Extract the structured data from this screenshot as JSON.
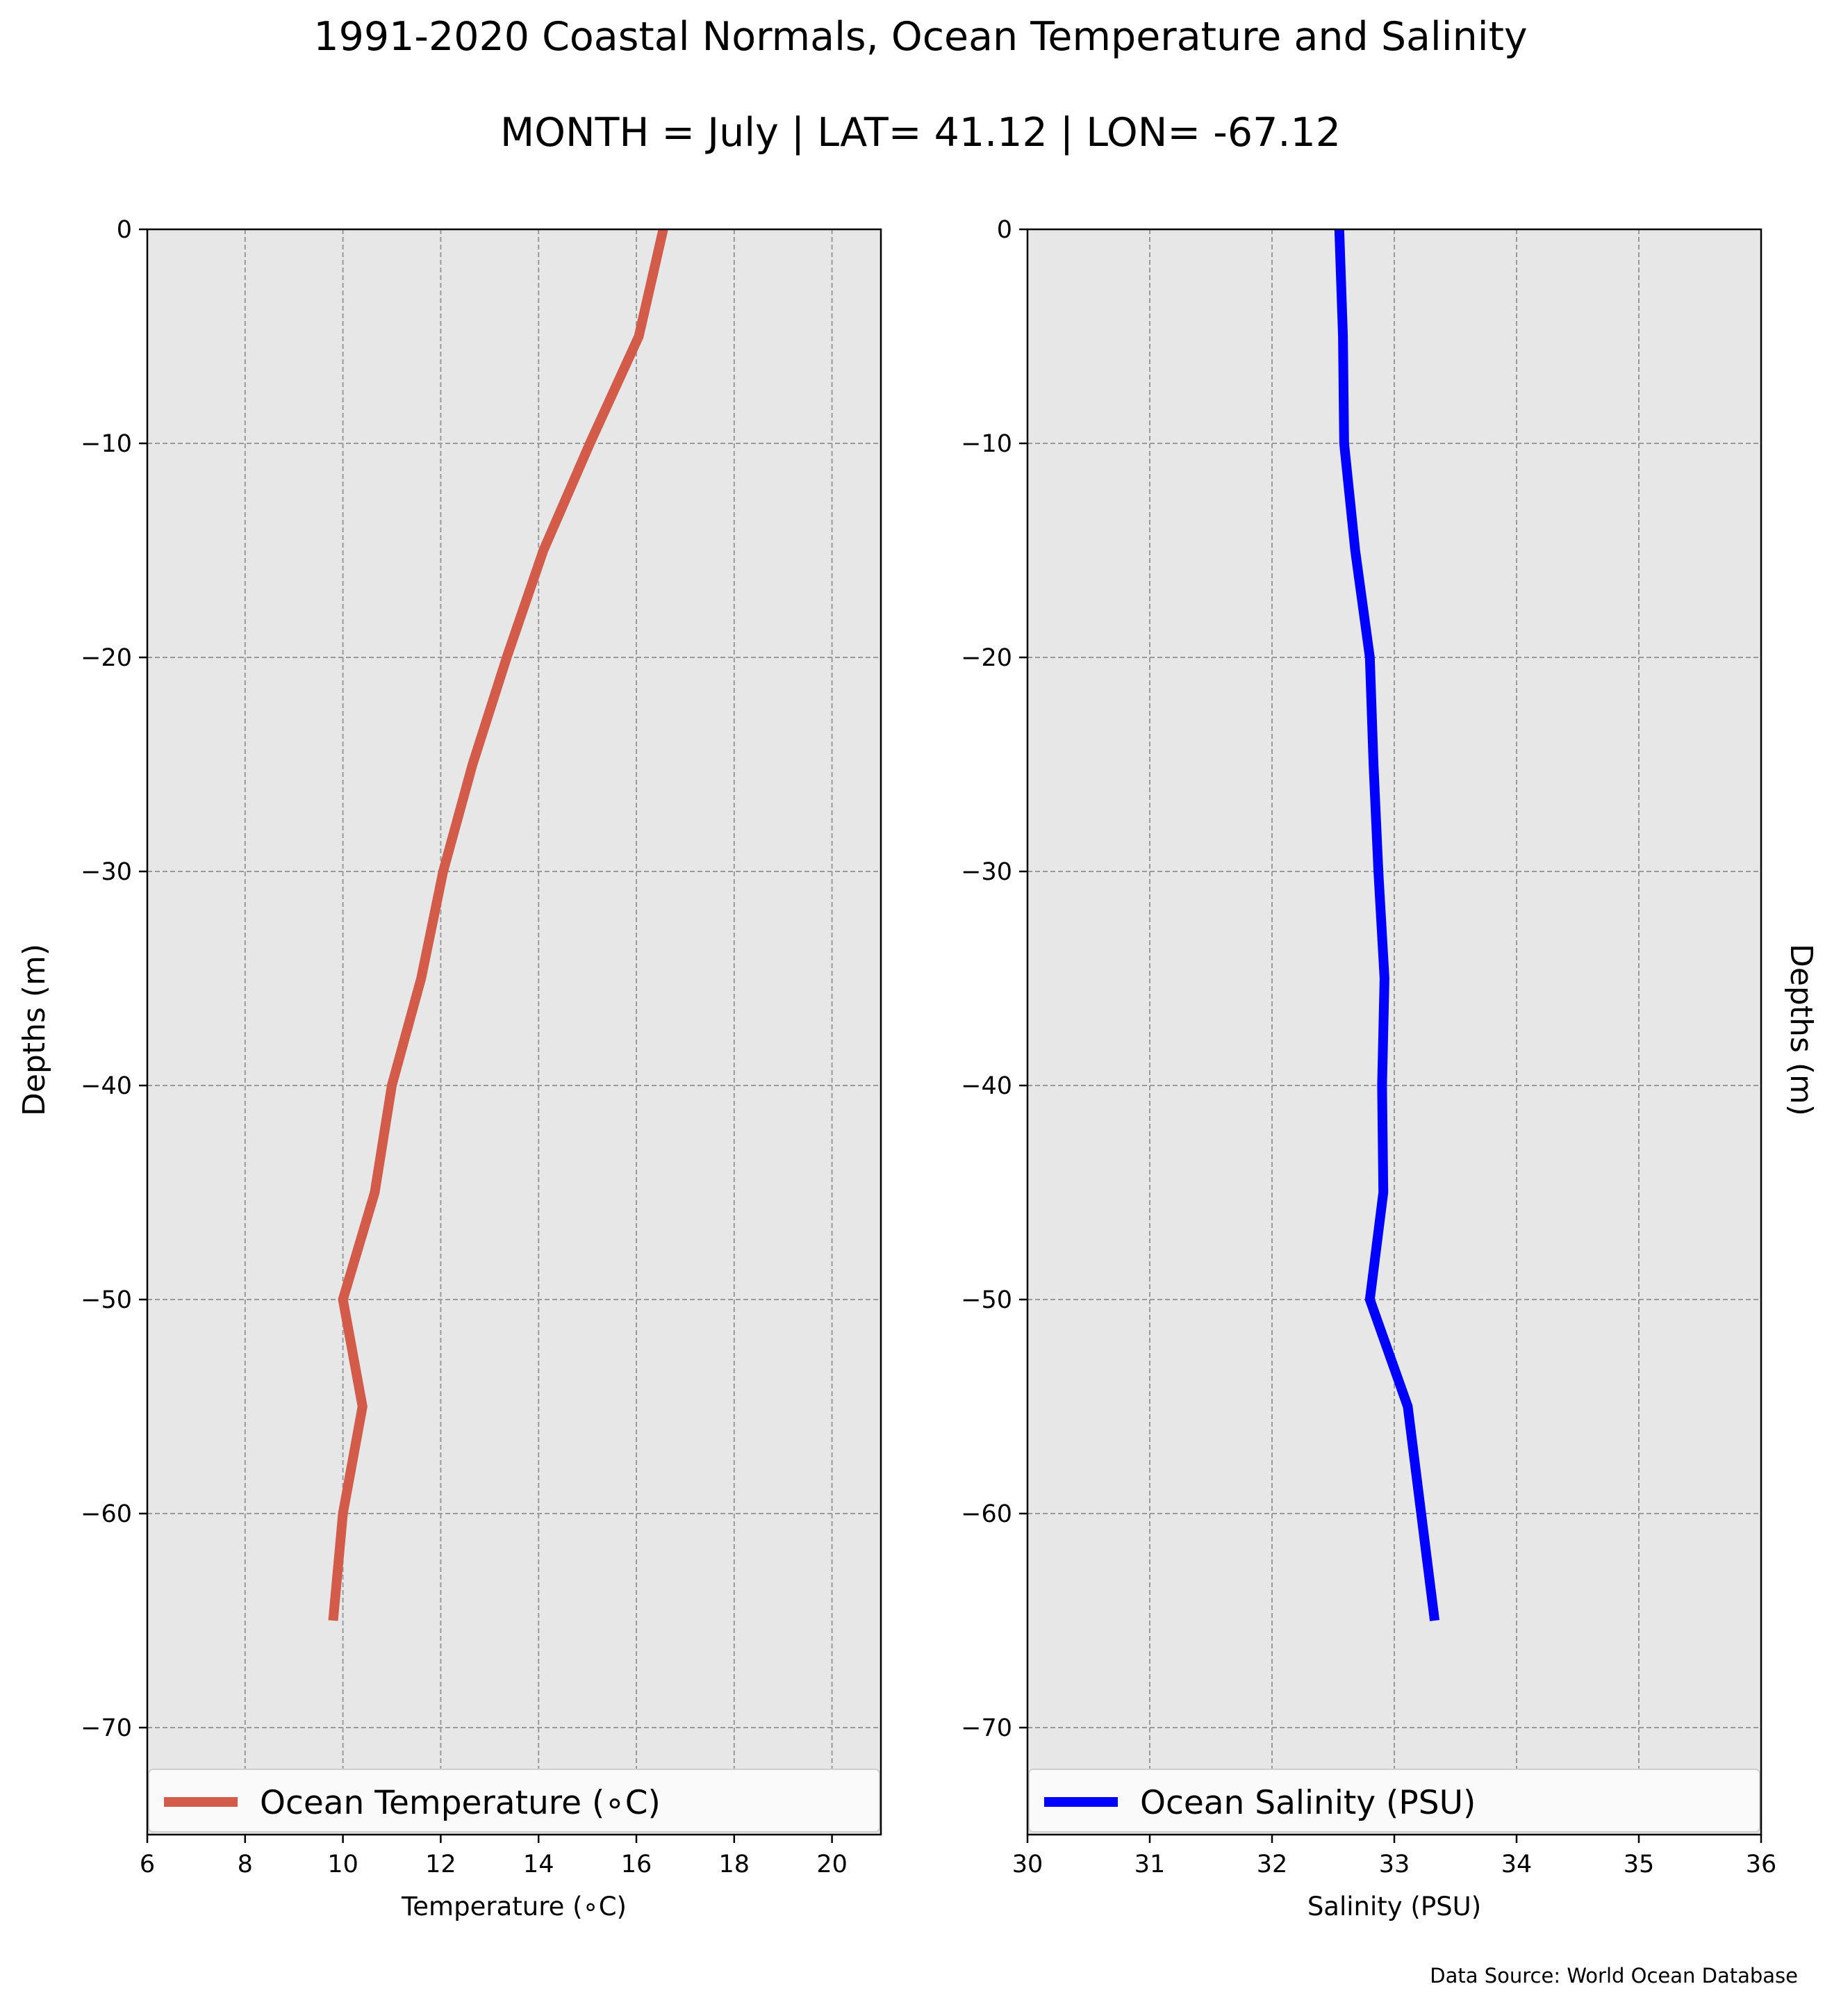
{
  "figure": {
    "title": "1991-2020 Coastal Normals, Ocean Temperature and Salinity",
    "subtitle": "MONTH = July | LAT= 41.12 | LON= -67.12",
    "source": "Data Source: World Ocean Database"
  },
  "chart_data": [
    {
      "type": "line",
      "title": "",
      "xlabel": "Temperature ($^\\circ$C)",
      "xlabel_display": "Temperature (∘C)",
      "ylabel": "Depths (m)",
      "xlim": [
        6,
        21
      ],
      "ylim": [
        -75,
        0
      ],
      "xticks": [
        6,
        8,
        10,
        12,
        14,
        16,
        18,
        20
      ],
      "xtick_labels": [
        "6",
        "8",
        "10",
        "12",
        "14",
        "16",
        "18",
        "20"
      ],
      "yticks": [
        0,
        -10,
        -20,
        -30,
        -40,
        -50,
        -60,
        -70
      ],
      "ytick_labels": [
        "0",
        "−10",
        "−20",
        "−30",
        "−40",
        "−50",
        "−60",
        "−70"
      ],
      "grid": true,
      "legend_position": "bottom",
      "series": [
        {
          "name": "Ocean Temperature (∘C)",
          "color": "#d35b4a",
          "x": [
            16.55,
            16.05,
            15.05,
            14.1,
            13.35,
            12.65,
            12.05,
            11.6,
            11.0,
            10.65,
            10.0,
            10.4,
            10.0,
            9.8
          ],
          "y": [
            0,
            -5,
            -10,
            -15,
            -20,
            -25,
            -30,
            -35,
            -40,
            -45,
            -50,
            -55,
            -60,
            -65
          ]
        }
      ]
    },
    {
      "type": "line",
      "title": "",
      "xlabel": "Salinity (PSU)",
      "ylabel": "Depths (m)",
      "xlim": [
        30,
        36
      ],
      "ylim": [
        -75,
        0
      ],
      "xticks": [
        30,
        31,
        32,
        33,
        34,
        35,
        36
      ],
      "xtick_labels": [
        "30",
        "31",
        "32",
        "33",
        "34",
        "35",
        "36"
      ],
      "yticks": [
        0,
        -10,
        -20,
        -30,
        -40,
        -50,
        -60,
        -70
      ],
      "ytick_labels": [
        "0",
        "−10",
        "−20",
        "−30",
        "−40",
        "−50",
        "−60",
        "−70"
      ],
      "grid": true,
      "legend_position": "bottom",
      "series": [
        {
          "name": "Ocean Salinity (PSU)",
          "color": "#0000ff",
          "x": [
            32.55,
            32.58,
            32.59,
            32.68,
            32.8,
            32.83,
            32.87,
            32.92,
            32.9,
            32.91,
            32.8,
            33.11,
            33.22,
            33.33
          ],
          "y": [
            0,
            -5,
            -10,
            -15,
            -20,
            -25,
            -30,
            -35,
            -40,
            -45,
            -50,
            -55,
            -60,
            -65
          ]
        }
      ]
    }
  ]
}
